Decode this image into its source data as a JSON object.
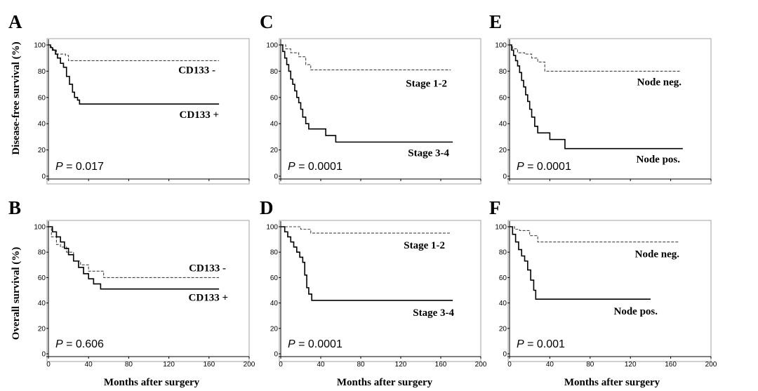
{
  "figure": {
    "ylabels": {
      "top": "Disease-free survival (%)",
      "bottom": "Overall survival (%)"
    },
    "xlabel": "Months after surgery",
    "p_prefix": "P"
  },
  "chart_data": [
    {
      "panel": "A",
      "type": "line",
      "row": 0,
      "col": 0,
      "xlim": [
        0,
        200
      ],
      "ylim": [
        0,
        100
      ],
      "yticks": [
        "0",
        "20",
        "40",
        "60",
        "80",
        "100"
      ],
      "xticks": [
        "0",
        "40",
        "80",
        "120",
        "160",
        "200"
      ],
      "show_xtick_labels": false,
      "p_value": "= 0.017",
      "series": [
        {
          "name": "CD133 -",
          "style": "dashed",
          "x": [
            0,
            3,
            5,
            8,
            12,
            17,
            20,
            24,
            170
          ],
          "y": [
            100,
            98,
            96,
            93,
            93,
            92,
            88,
            88,
            88
          ]
        },
        {
          "name": "CD133 +",
          "style": "solid",
          "x": [
            0,
            2,
            4,
            7,
            9,
            12,
            15,
            18,
            21,
            24,
            26,
            29,
            31,
            170
          ],
          "y": [
            100,
            98,
            96,
            93,
            90,
            86,
            83,
            76,
            70,
            64,
            60,
            58,
            55,
            55
          ]
        }
      ]
    },
    {
      "panel": "C",
      "type": "line",
      "row": 0,
      "col": 1,
      "xlim": [
        0,
        200
      ],
      "ylim": [
        0,
        100
      ],
      "yticks": [
        "0",
        "20",
        "40",
        "60",
        "80",
        "100"
      ],
      "xticks": [
        "0",
        "40",
        "80",
        "120",
        "160",
        "200"
      ],
      "show_xtick_labels": false,
      "p_value": "= 0.0001",
      "series": [
        {
          "name": "Stage 1-2",
          "style": "dashed",
          "x": [
            0,
            5,
            10,
            18,
            25,
            30,
            170
          ],
          "y": [
            100,
            97,
            94,
            91,
            85,
            81,
            81
          ]
        },
        {
          "name": "Stage 3-4",
          "style": "solid",
          "x": [
            0,
            2,
            4,
            6,
            8,
            10,
            12,
            14,
            16,
            18,
            20,
            22,
            25,
            28,
            45,
            55,
            172
          ],
          "y": [
            100,
            95,
            90,
            85,
            80,
            74,
            70,
            65,
            60,
            56,
            51,
            45,
            40,
            36,
            31,
            26,
            26
          ]
        }
      ]
    },
    {
      "panel": "E",
      "type": "line",
      "row": 0,
      "col": 2,
      "xlim": [
        0,
        200
      ],
      "ylim": [
        0,
        100
      ],
      "yticks": [
        "0",
        "20",
        "40",
        "60",
        "80",
        "100"
      ],
      "xticks": [
        "0",
        "40",
        "80",
        "120",
        "160",
        "200"
      ],
      "show_xtick_labels": false,
      "p_value": "= 0.0001",
      "series": [
        {
          "name": "Node neg.",
          "style": "dashed",
          "x": [
            0,
            3,
            8,
            15,
            22,
            28,
            35,
            170
          ],
          "y": [
            100,
            97,
            94,
            93,
            90,
            87,
            80,
            80
          ]
        },
        {
          "name": "Node pos.",
          "style": "solid",
          "x": [
            0,
            2,
            4,
            6,
            8,
            10,
            12,
            14,
            16,
            18,
            20,
            22,
            25,
            28,
            40,
            55,
            172
          ],
          "y": [
            100,
            96,
            92,
            88,
            84,
            79,
            73,
            68,
            62,
            57,
            51,
            45,
            38,
            33,
            28,
            21,
            21
          ]
        }
      ]
    },
    {
      "panel": "B",
      "type": "line",
      "row": 1,
      "col": 0,
      "xlim": [
        0,
        200
      ],
      "ylim": [
        0,
        100
      ],
      "yticks": [
        "0",
        "20",
        "40",
        "60",
        "80",
        "100"
      ],
      "xticks": [
        "0",
        "40",
        "80",
        "120",
        "160",
        "200"
      ],
      "show_xtick_labels": true,
      "p_value": "= 0.606",
      "series": [
        {
          "name": "CD133 -",
          "style": "dashed",
          "x": [
            0,
            3,
            8,
            12,
            18,
            25,
            32,
            40,
            55,
            170
          ],
          "y": [
            100,
            92,
            86,
            84,
            80,
            73,
            70,
            65,
            60,
            60
          ]
        },
        {
          "name": "CD133 +",
          "style": "solid",
          "x": [
            0,
            4,
            8,
            12,
            16,
            20,
            25,
            30,
            35,
            40,
            45,
            52,
            170
          ],
          "y": [
            100,
            96,
            92,
            88,
            83,
            78,
            73,
            68,
            63,
            59,
            55,
            51,
            51
          ]
        }
      ]
    },
    {
      "panel": "D",
      "type": "line",
      "row": 1,
      "col": 1,
      "xlim": [
        0,
        200
      ],
      "ylim": [
        0,
        100
      ],
      "yticks": [
        "0",
        "20",
        "40",
        "60",
        "80",
        "100"
      ],
      "xticks": [
        "0",
        "40",
        "80",
        "120",
        "160",
        "200"
      ],
      "show_xtick_labels": true,
      "p_value": "= 0.0001",
      "series": [
        {
          "name": "Stage 1-2",
          "style": "dashed",
          "x": [
            0,
            10,
            20,
            30,
            170
          ],
          "y": [
            100,
            100,
            98,
            95,
            95
          ]
        },
        {
          "name": "Stage 3-4",
          "style": "solid",
          "x": [
            0,
            4,
            7,
            10,
            13,
            16,
            19,
            22,
            24,
            26,
            28,
            31,
            172
          ],
          "y": [
            100,
            96,
            92,
            88,
            84,
            80,
            76,
            72,
            62,
            52,
            47,
            42,
            42
          ]
        }
      ]
    },
    {
      "panel": "F",
      "type": "line",
      "row": 1,
      "col": 2,
      "xlim": [
        0,
        200
      ],
      "ylim": [
        0,
        100
      ],
      "yticks": [
        "0",
        "20",
        "40",
        "60",
        "80",
        "100"
      ],
      "xticks": [
        "0",
        "40",
        "80",
        "120",
        "160",
        "200"
      ],
      "show_xtick_labels": true,
      "p_value": "= 0.001",
      "series": [
        {
          "name": "Node neg.",
          "style": "dashed",
          "x": [
            0,
            5,
            10,
            20,
            28,
            168
          ],
          "y": [
            100,
            98,
            97,
            93,
            88,
            88
          ]
        },
        {
          "name": "Node pos.",
          "style": "solid",
          "x": [
            0,
            3,
            6,
            9,
            12,
            15,
            18,
            21,
            24,
            26,
            140
          ],
          "y": [
            100,
            94,
            88,
            82,
            77,
            73,
            66,
            58,
            50,
            43,
            43
          ]
        }
      ]
    }
  ]
}
